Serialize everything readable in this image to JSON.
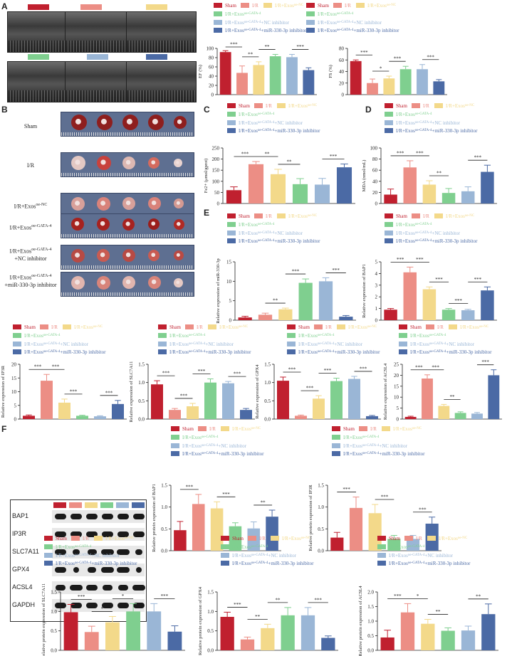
{
  "panel_letters": {
    "a": "A",
    "b": "B",
    "c": "C",
    "d": "D",
    "e": "E",
    "f": "F"
  },
  "groups": {
    "sham": "Sham",
    "ir": "I/R",
    "exos_nc": "I/R+Exos",
    "exos_nc_sup": "oe-NC",
    "exos_gata4": "I/R+Exos",
    "exos_gata4_sup": "oe-GATA-4",
    "gata4_nc_inh": "I/R+Exos",
    "gata4_nc_inh_sup": "oe-GATA-4",
    "gata4_nc_inh_tail": "+NC inhibitor",
    "gata4_mir_inh": "I/R+Exos",
    "gata4_mir_inh_sup": "oe-GATA-4",
    "gata4_mir_inh_tail": "+miR-330-3p inhibitor"
  },
  "colors": {
    "sham": "#c0202f",
    "ir": "#ec8e85",
    "exos_nc": "#f3d98a",
    "gata4": "#7fcf8f",
    "nc_inh": "#9ab6d6",
    "mir_inh": "#4b6aa5"
  },
  "heart_labels": {
    "sham": "Sham",
    "ir": "I/R",
    "nc_main": "I/R+Exos",
    "nc_sup": "oe-NC",
    "gata_main": "I/R+Exos",
    "gata_sup": "oe-GATA-4",
    "ncinh_main": "I/R+Exos",
    "ncinh_sup": "oe-GATA-4",
    "ncinh_tail": "+NC inhibitor",
    "mir_main": "I/R+Exos",
    "mir_sup": "oe-GATA-4",
    "mir_tail": "+miR-330-3p inhibitor"
  },
  "blot_labels": [
    "BAP1",
    "IP3R",
    "SLC7A11",
    "GPX4",
    "ACSL4",
    "GAPDH"
  ],
  "chart_data": [
    {
      "id": "ef",
      "type": "bar",
      "ylabel": "EF (%)",
      "ylim": [
        0,
        100
      ],
      "ticks": [
        0,
        20,
        40,
        60,
        80,
        100
      ],
      "values": [
        92,
        47,
        64,
        83,
        81,
        53
      ],
      "errors": [
        3,
        15,
        7,
        4,
        6,
        5
      ],
      "sig": [
        {
          "from": 0,
          "to": 1,
          "label": "***"
        },
        {
          "from": 1,
          "to": 2,
          "label": "**"
        },
        {
          "from": 2,
          "to": 3,
          "label": "**"
        },
        {
          "from": 4,
          "to": 5,
          "label": "***"
        }
      ]
    },
    {
      "id": "fs",
      "type": "bar",
      "ylabel": "FS (%)",
      "ylim": [
        0,
        80
      ],
      "ticks": [
        0,
        20,
        40,
        60,
        80
      ],
      "values": [
        58,
        20,
        28,
        44,
        44,
        23
      ],
      "errors": [
        2,
        7,
        4,
        5,
        8,
        3
      ],
      "sig": [
        {
          "from": 0,
          "to": 1,
          "label": "***"
        },
        {
          "from": 1,
          "to": 2,
          "label": "*"
        },
        {
          "from": 2,
          "to": 3,
          "label": "***"
        },
        {
          "from": 4,
          "to": 5,
          "label": "***"
        }
      ]
    },
    {
      "id": "fe",
      "type": "bar",
      "ylabel": "Fe2+ (μmol/gprot)",
      "ylim": [
        0,
        250
      ],
      "ticks": [
        0,
        50,
        100,
        150,
        200,
        250
      ],
      "values": [
        60,
        177,
        132,
        87,
        85,
        163
      ],
      "errors": [
        15,
        12,
        22,
        25,
        28,
        15
      ],
      "sig": [
        {
          "from": 0,
          "to": 1,
          "label": "***"
        },
        {
          "from": 1,
          "to": 2,
          "label": "**"
        },
        {
          "from": 2,
          "to": 3,
          "label": "**"
        },
        {
          "from": 4,
          "to": 5,
          "label": "***"
        }
      ]
    },
    {
      "id": "mda",
      "type": "bar",
      "ylabel": "MDA (nmol/mL)",
      "ylim": [
        0,
        100
      ],
      "ticks": [
        0,
        20,
        40,
        60,
        80,
        100
      ],
      "values": [
        16,
        65,
        34,
        19,
        22,
        57
      ],
      "errors": [
        10,
        12,
        7,
        8,
        8,
        12
      ],
      "sig": [
        {
          "from": 0,
          "to": 1,
          "label": "***"
        },
        {
          "from": 1,
          "to": 2,
          "label": "***"
        },
        {
          "from": 2,
          "to": 3,
          "label": "**"
        },
        {
          "from": 4,
          "to": 5,
          "label": "***"
        }
      ]
    },
    {
      "id": "mir",
      "type": "bar",
      "ylabel": "Relative expression of miR-330-3p",
      "ylim": [
        0,
        15
      ],
      "ticks": [
        0,
        5,
        10,
        15
      ],
      "values": [
        0.7,
        1.4,
        2.8,
        9.6,
        10.0,
        0.9
      ],
      "errors": [
        0.3,
        0.4,
        0.3,
        1.0,
        0.9,
        0.3
      ],
      "sig": [
        {
          "from": 1,
          "to": 2,
          "label": "**"
        },
        {
          "from": 2,
          "to": 3,
          "label": "***"
        },
        {
          "from": 4,
          "to": 5,
          "label": "***"
        }
      ]
    },
    {
      "id": "bap1_rna",
      "type": "bar",
      "ylabel": "Relative expression of BAP1",
      "ylim": [
        0,
        5
      ],
      "ticks": [
        0,
        1,
        2,
        3,
        4,
        5
      ],
      "values": [
        0.9,
        4.1,
        2.65,
        0.9,
        0.85,
        2.55
      ],
      "errors": [
        0.1,
        0.45,
        0.2,
        0.1,
        0.08,
        0.3
      ],
      "sig": [
        {
          "from": 0,
          "to": 1,
          "label": "***"
        },
        {
          "from": 1,
          "to": 2,
          "label": "***"
        },
        {
          "from": 2,
          "to": 3,
          "label": "***"
        },
        {
          "from": 3,
          "to": 4,
          "label": "***"
        },
        {
          "from": 4,
          "to": 5,
          "label": "***"
        }
      ]
    },
    {
      "id": "ip3r_rna",
      "type": "bar",
      "ylabel": "Relative expression of IP3R",
      "ylim": [
        0,
        20
      ],
      "ticks": [
        0,
        5,
        10,
        15,
        20
      ],
      "values": [
        1.2,
        14,
        6,
        1.2,
        1,
        5.5
      ],
      "errors": [
        0.3,
        2.3,
        1.3,
        0.2,
        0.2,
        1.3
      ],
      "sig": [
        {
          "from": 0,
          "to": 1,
          "label": "***"
        },
        {
          "from": 1,
          "to": 2,
          "label": "***"
        },
        {
          "from": 2,
          "to": 3,
          "label": "***"
        },
        {
          "from": 4,
          "to": 5,
          "label": "***"
        }
      ]
    },
    {
      "id": "slc_rna",
      "type": "bar",
      "ylabel": "Relative expression of SLC7A11",
      "ylim": [
        0,
        1.5
      ],
      "ticks": [
        0,
        0.5,
        1.0,
        1.5
      ],
      "values": [
        0.95,
        0.25,
        0.35,
        1.0,
        0.98,
        0.25
      ],
      "errors": [
        0.1,
        0.04,
        0.08,
        0.1,
        0.05,
        0.04
      ],
      "sig": [
        {
          "from": 0,
          "to": 1,
          "label": "***"
        },
        {
          "from": 1,
          "to": 2,
          "label": "***"
        },
        {
          "from": 2,
          "to": 3,
          "label": "***"
        },
        {
          "from": 4,
          "to": 5,
          "label": "***"
        }
      ]
    },
    {
      "id": "gpx4_rna",
      "type": "bar",
      "ylabel": "Relative expression of GPX4",
      "ylim": [
        0,
        1.5
      ],
      "ticks": [
        0,
        0.5,
        1.0,
        1.5
      ],
      "values": [
        1.05,
        0.09,
        0.56,
        1.04,
        1.1,
        0.08
      ],
      "errors": [
        0.1,
        0.02,
        0.08,
        0.08,
        0.07,
        0.02
      ],
      "sig": [
        {
          "from": 0,
          "to": 1,
          "label": "***"
        },
        {
          "from": 1,
          "to": 2,
          "label": "***"
        },
        {
          "from": 2,
          "to": 3,
          "label": "***"
        },
        {
          "from": 4,
          "to": 5,
          "label": "***"
        }
      ]
    },
    {
      "id": "acsl4_rna",
      "type": "bar",
      "ylabel": "Relative expression of ACSL4",
      "ylim": [
        0,
        25
      ],
      "ticks": [
        0,
        5,
        10,
        15,
        20,
        25
      ],
      "values": [
        1,
        18.5,
        6,
        2.8,
        2.5,
        20
      ],
      "errors": [
        0.3,
        1.7,
        0.7,
        0.5,
        0.5,
        2.5
      ],
      "sig": [
        {
          "from": 0,
          "to": 1,
          "label": "***"
        },
        {
          "from": 1,
          "to": 2,
          "label": "***"
        },
        {
          "from": 2,
          "to": 3,
          "label": "**"
        },
        {
          "from": 4,
          "to": 5,
          "label": "***"
        }
      ]
    },
    {
      "id": "bap1_prot",
      "type": "bar",
      "ylabel": "Relative protein expression of BAP1",
      "ylim": [
        0,
        1.5
      ],
      "ticks": [
        0,
        0.5,
        1.0,
        1.5
      ],
      "values": [
        0.47,
        1.07,
        0.97,
        0.56,
        0.51,
        0.78
      ],
      "errors": [
        0.2,
        0.22,
        0.15,
        0.08,
        0.15,
        0.15
      ],
      "sig": [
        {
          "from": 0,
          "to": 1,
          "label": "***"
        },
        {
          "from": 2,
          "to": 3,
          "label": "***"
        },
        {
          "from": 4,
          "to": 5,
          "label": "**"
        }
      ]
    },
    {
      "id": "ip3r_prot",
      "type": "bar",
      "ylabel": "Relative protein expression of IP3R",
      "ylim": [
        0,
        1.5
      ],
      "ticks": [
        0,
        0.5,
        1.0,
        1.5
      ],
      "values": [
        0.3,
        0.98,
        0.86,
        0.27,
        0.27,
        0.62
      ],
      "errors": [
        0.12,
        0.25,
        0.2,
        0.08,
        0.08,
        0.15
      ],
      "sig": [
        {
          "from": 0,
          "to": 1,
          "label": "***"
        },
        {
          "from": 2,
          "to": 3,
          "label": "***"
        },
        {
          "from": 4,
          "to": 5,
          "label": "***"
        }
      ]
    },
    {
      "id": "slc_prot",
      "type": "bar",
      "ylabel": "Relative protein expression of SLC7A11",
      "ylim": [
        0,
        1.5
      ],
      "ticks": [
        0,
        0.5,
        1.0,
        1.5
      ],
      "values": [
        0.98,
        0.47,
        0.72,
        1.0,
        1.0,
        0.48
      ],
      "errors": [
        0.2,
        0.15,
        0.15,
        0.2,
        0.2,
        0.15
      ],
      "sig": [
        {
          "from": 0,
          "to": 1,
          "label": "***"
        },
        {
          "from": 1,
          "to": 2,
          "label": "*"
        },
        {
          "from": 2,
          "to": 3,
          "label": "*"
        },
        {
          "from": 4,
          "to": 5,
          "label": "***"
        }
      ]
    },
    {
      "id": "gpx4_prot",
      "type": "bar",
      "ylabel": "Relative protein expression of GPX4",
      "ylim": [
        0,
        1.5
      ],
      "ticks": [
        0,
        0.5,
        1.0,
        1.5
      ],
      "values": [
        0.86,
        0.28,
        0.57,
        0.9,
        0.9,
        0.32
      ],
      "errors": [
        0.12,
        0.06,
        0.1,
        0.2,
        0.2,
        0.05
      ],
      "sig": [
        {
          "from": 0,
          "to": 1,
          "label": "***"
        },
        {
          "from": 1,
          "to": 2,
          "label": "**"
        },
        {
          "from": 2,
          "to": 3,
          "label": "**"
        },
        {
          "from": 4,
          "to": 5,
          "label": "***"
        }
      ]
    },
    {
      "id": "acsl4_prot",
      "type": "bar",
      "ylabel": "Relative protein expression of ACSL4",
      "ylim": [
        0,
        2.0
      ],
      "ticks": [
        0,
        0.5,
        1.0,
        1.5,
        2.0
      ],
      "values": [
        0.44,
        1.3,
        0.91,
        0.67,
        0.68,
        1.24
      ],
      "errors": [
        0.25,
        0.3,
        0.15,
        0.1,
        0.15,
        0.35
      ],
      "sig": [
        {
          "from": 0,
          "to": 1,
          "label": "***"
        },
        {
          "from": 1,
          "to": 2,
          "label": "*"
        },
        {
          "from": 2,
          "to": 3,
          "label": "**"
        },
        {
          "from": 4,
          "to": 5,
          "label": "**"
        }
      ]
    }
  ]
}
